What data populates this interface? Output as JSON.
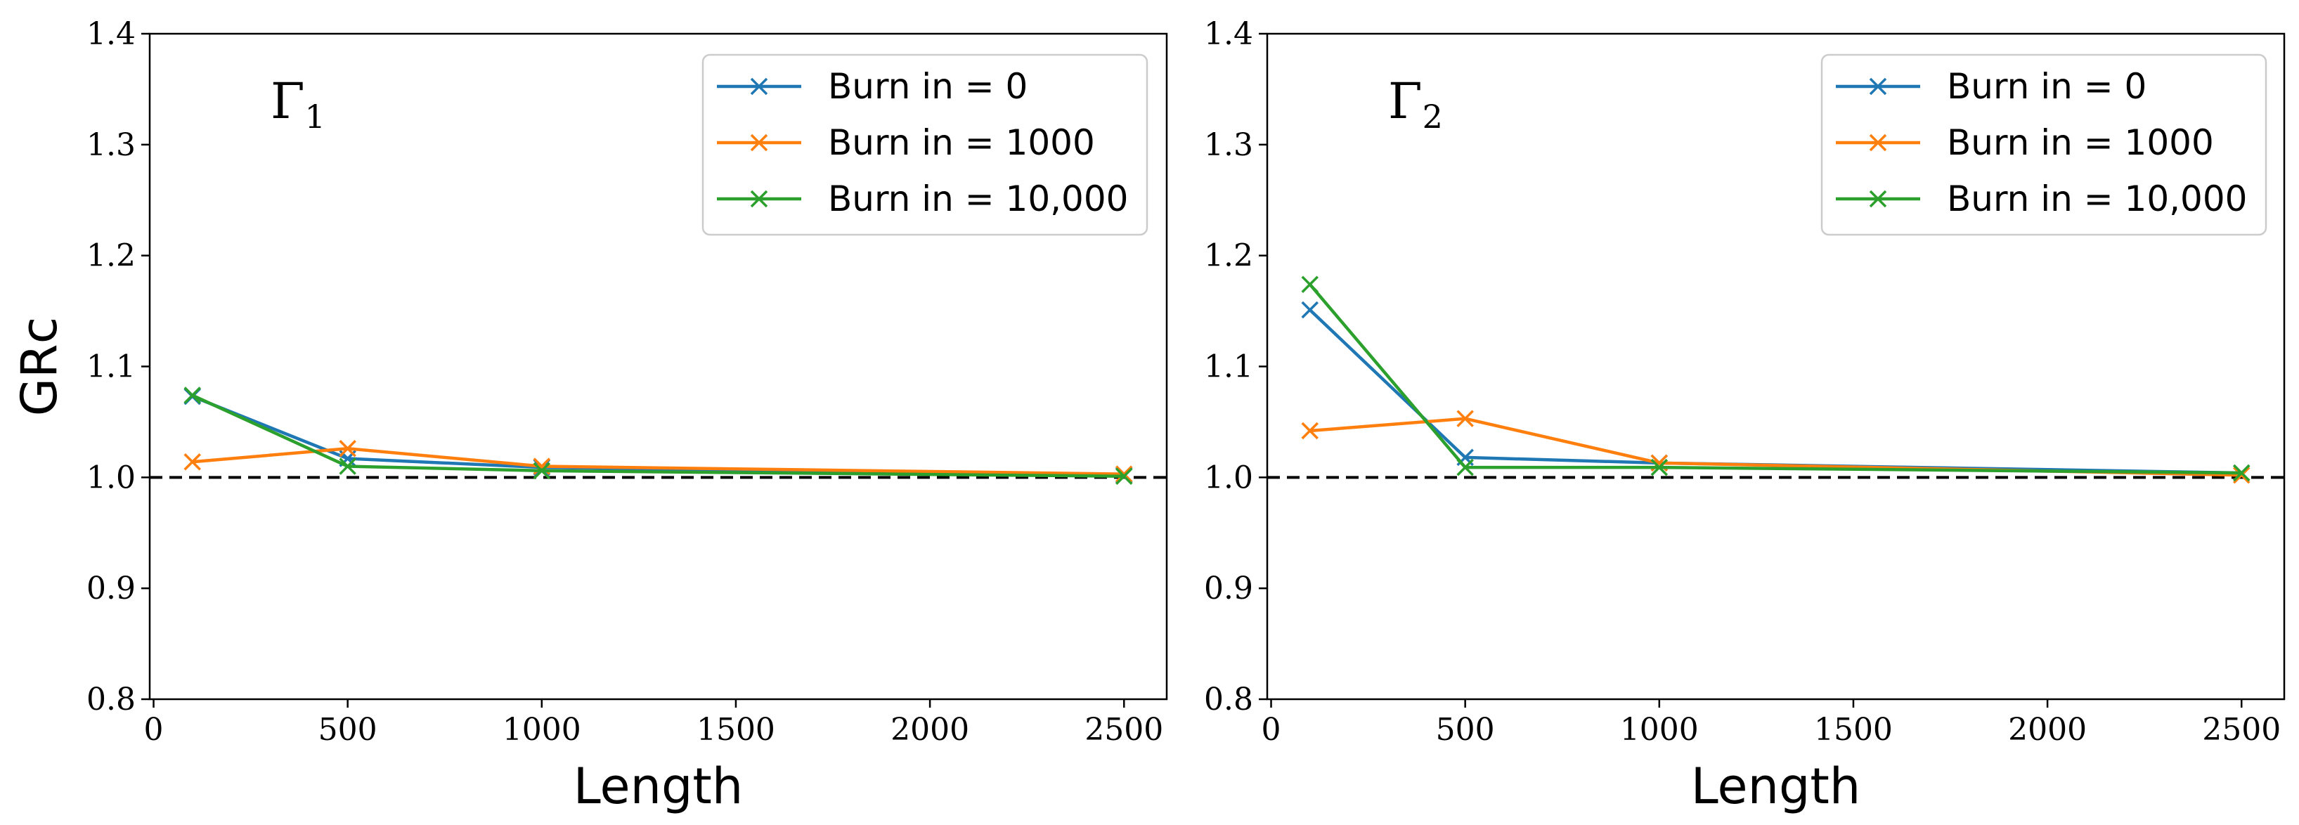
{
  "chart_data": [
    {
      "type": "line",
      "annotation": "Γ",
      "annotation_subscript": "1",
      "xlabel": "Length",
      "ylabel": "GRc",
      "xlim": [
        -10,
        2610
      ],
      "ylim": [
        0.8,
        1.4
      ],
      "xticks": [
        0,
        500,
        1000,
        1500,
        2000,
        2500
      ],
      "xtick_labels": [
        "0",
        "500",
        "1000",
        "1500",
        "2000",
        "2500"
      ],
      "yticks": [
        0.8,
        0.9,
        1.0,
        1.1,
        1.2,
        1.3,
        1.4
      ],
      "ytick_labels": [
        "0.8",
        "0.9",
        "1.0",
        "1.1",
        "1.2",
        "1.3",
        "1.4"
      ],
      "reference_line": 1.0,
      "legend_position": "top-right",
      "x": [
        100,
        500,
        1000,
        2500
      ],
      "series": [
        {
          "name": "Burn in = 0",
          "color": "#1f77b4",
          "values": [
            1.073,
            1.017,
            1.009,
            1.002
          ]
        },
        {
          "name": "Burn in = 1000",
          "color": "#ff7f0e",
          "values": [
            1.014,
            1.026,
            1.01,
            1.003
          ]
        },
        {
          "name": "Burn in = 10,000",
          "color": "#2ca02c",
          "values": [
            1.074,
            1.01,
            1.006,
            1.001
          ]
        }
      ]
    },
    {
      "type": "line",
      "annotation": "Γ",
      "annotation_subscript": "2",
      "xlabel": "Length",
      "ylabel": "",
      "xlim": [
        -10,
        2610
      ],
      "ylim": [
        0.8,
        1.4
      ],
      "xticks": [
        0,
        500,
        1000,
        1500,
        2000,
        2500
      ],
      "xtick_labels": [
        "0",
        "500",
        "1000",
        "1500",
        "2000",
        "2500"
      ],
      "yticks": [
        0.8,
        0.9,
        1.0,
        1.1,
        1.2,
        1.3,
        1.4
      ],
      "ytick_labels": [
        "0.8",
        "0.9",
        "1.0",
        "1.1",
        "1.2",
        "1.3",
        "1.4"
      ],
      "reference_line": 1.0,
      "legend_position": "top-right",
      "x": [
        100,
        500,
        1000,
        2500
      ],
      "series": [
        {
          "name": "Burn in = 0",
          "color": "#1f77b4",
          "values": [
            1.151,
            1.018,
            1.013,
            1.004
          ]
        },
        {
          "name": "Burn in = 1000",
          "color": "#ff7f0e",
          "values": [
            1.042,
            1.053,
            1.013,
            1.002
          ]
        },
        {
          "name": "Burn in = 10,000",
          "color": "#2ca02c",
          "values": [
            1.174,
            1.009,
            1.009,
            1.004
          ]
        }
      ]
    }
  ]
}
